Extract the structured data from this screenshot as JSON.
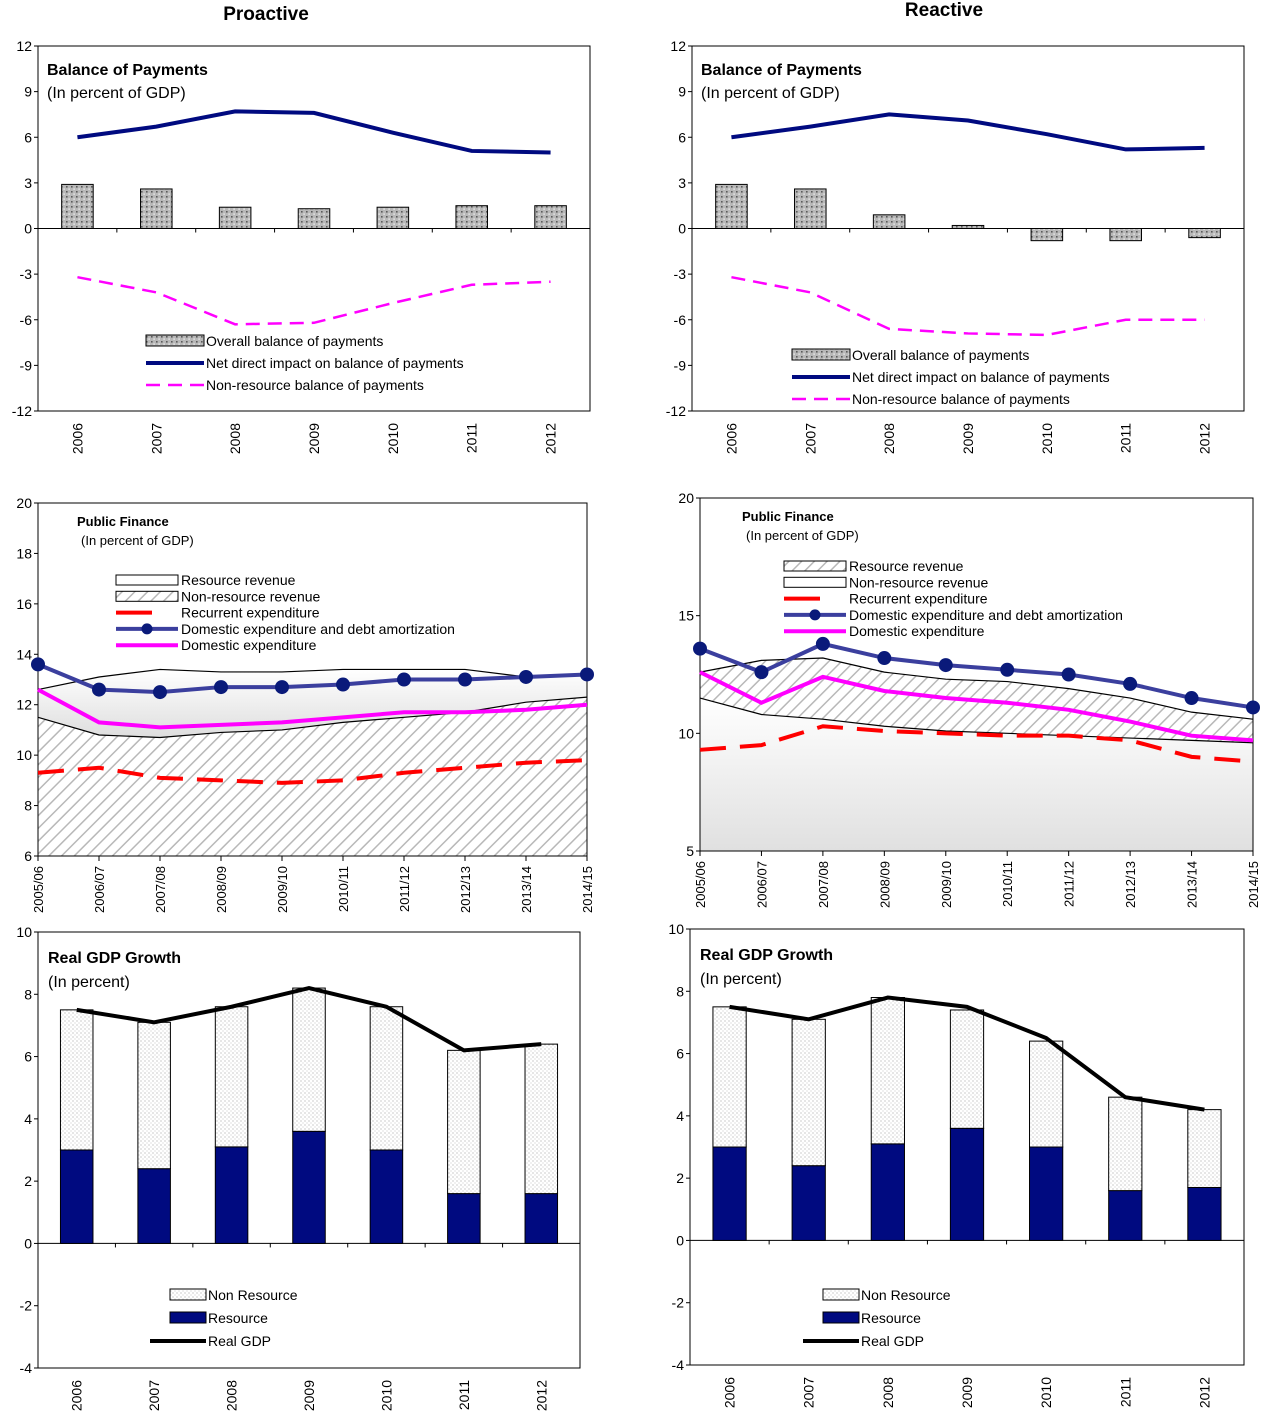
{
  "columns": {
    "left_title": "Proactive",
    "right_title": "Reactive"
  },
  "colors": {
    "navy": "#000a80",
    "magenta": "#ff00ff",
    "red": "#ff0000",
    "steel_blue": "#3b3f9e",
    "black": "#000000"
  },
  "chart_data": [
    {
      "id": "bop_proactive",
      "type": "bar",
      "title": "Balance of Payments",
      "subtitle": "(In percent of GDP)",
      "categories": [
        "2006",
        "2007",
        "2008",
        "2009",
        "2010",
        "2011",
        "2012"
      ],
      "ylim": [
        -12,
        12
      ],
      "yticks": [
        -12,
        -9,
        -6,
        -3,
        0,
        3,
        6,
        9,
        12
      ],
      "legend_placement": "bottom-center",
      "series": [
        {
          "name": "Overall balance of payments",
          "kind": "bar",
          "values": [
            2.9,
            2.6,
            1.4,
            1.3,
            1.4,
            1.5,
            1.5
          ]
        },
        {
          "name": "Net direct impact on balance of payments",
          "kind": "line",
          "values": [
            6.0,
            6.7,
            7.7,
            7.6,
            6.3,
            5.1,
            5.0
          ]
        },
        {
          "name": "Non-resource balance of payments",
          "kind": "dashed-line",
          "values": [
            -3.2,
            -4.2,
            -6.3,
            -6.2,
            -4.9,
            -3.7,
            -3.5
          ]
        }
      ]
    },
    {
      "id": "bop_reactive",
      "type": "bar",
      "title": "Balance of Payments",
      "subtitle": "(In percent of GDP)",
      "categories": [
        "2006",
        "2007",
        "2008",
        "2009",
        "2010",
        "2011",
        "2012"
      ],
      "ylim": [
        -12,
        12
      ],
      "yticks": [
        -12,
        -9,
        -6,
        -3,
        0,
        3,
        6,
        9,
        12
      ],
      "legend_placement": "bottom-center",
      "series": [
        {
          "name": "Overall balance of payments",
          "kind": "bar",
          "values": [
            2.9,
            2.6,
            0.9,
            0.2,
            -0.8,
            -0.8,
            -0.6
          ]
        },
        {
          "name": "Net direct impact on balance of payments",
          "kind": "line",
          "values": [
            6.0,
            6.7,
            7.5,
            7.1,
            6.2,
            5.2,
            5.3
          ]
        },
        {
          "name": "Non-resource balance of payments",
          "kind": "dashed-line",
          "values": [
            -3.2,
            -4.2,
            -6.6,
            -6.9,
            -7.0,
            -6.0,
            -6.0
          ]
        }
      ]
    },
    {
      "id": "pf_proactive",
      "type": "area",
      "title": "Public Finance",
      "subtitle": "(In percent of GDP)",
      "categories": [
        "2005/06",
        "2006/07",
        "2007/08",
        "2008/09",
        "2009/10",
        "2010/11",
        "2011/12",
        "2012/13",
        "2013/14",
        "2014/15"
      ],
      "ylim": [
        6,
        20
      ],
      "yticks": [
        6,
        8,
        10,
        12,
        14,
        16,
        18,
        20
      ],
      "legend_placement": "upper-center",
      "series": [
        {
          "name": "Resource revenue",
          "kind": "area-top",
          "values": [
            12.6,
            13.1,
            13.4,
            13.3,
            13.3,
            13.4,
            13.4,
            13.4,
            13.1,
            13.2
          ]
        },
        {
          "name": "Non-resource revenue",
          "kind": "area-bottom",
          "values": [
            11.5,
            10.8,
            10.7,
            10.9,
            11.0,
            11.3,
            11.5,
            11.7,
            12.1,
            12.3
          ]
        },
        {
          "name": "Recurrent expenditure",
          "kind": "dashed-line",
          "values": [
            9.3,
            9.5,
            9.1,
            9.0,
            8.9,
            9.0,
            9.3,
            9.5,
            9.7,
            9.8
          ]
        },
        {
          "name": "Domestic expenditure and debt amortization",
          "kind": "marker-line",
          "values": [
            13.6,
            12.6,
            12.5,
            12.7,
            12.7,
            12.8,
            13.0,
            13.0,
            13.1,
            13.2
          ]
        },
        {
          "name": "Domestic expenditure",
          "kind": "line",
          "values": [
            12.6,
            11.3,
            11.1,
            11.2,
            11.3,
            11.5,
            11.7,
            11.7,
            11.8,
            12.0
          ]
        }
      ]
    },
    {
      "id": "pf_reactive",
      "type": "area",
      "title": "Public Finance",
      "subtitle": "(In percent of GDP)",
      "categories": [
        "2005/06",
        "2006/07",
        "2007/08",
        "2008/09",
        "2009/10",
        "2010/11",
        "2011/12",
        "2012/13",
        "2013/14",
        "2014/15"
      ],
      "ylim": [
        5,
        20
      ],
      "yticks": [
        5,
        10,
        15,
        20
      ],
      "legend_placement": "upper-center",
      "series": [
        {
          "name": "Resource revenue",
          "kind": "area-top",
          "values": [
            12.6,
            13.1,
            13.2,
            12.6,
            12.3,
            12.2,
            11.9,
            11.5,
            10.9,
            10.6
          ]
        },
        {
          "name": "Non-resource revenue",
          "kind": "area-bottom",
          "values": [
            11.5,
            10.8,
            10.6,
            10.3,
            10.1,
            10.0,
            9.9,
            9.8,
            9.7,
            9.6
          ]
        },
        {
          "name": "Recurrent expenditure",
          "kind": "dashed-line",
          "values": [
            9.3,
            9.5,
            10.3,
            10.1,
            10.0,
            9.9,
            9.9,
            9.7,
            9.0,
            8.8
          ]
        },
        {
          "name": "Domestic expenditure and debt amortization",
          "kind": "marker-line",
          "values": [
            13.6,
            12.6,
            13.8,
            13.2,
            12.9,
            12.7,
            12.5,
            12.1,
            11.5,
            11.1
          ]
        },
        {
          "name": "Domestic expenditure",
          "kind": "line",
          "values": [
            12.6,
            11.3,
            12.4,
            11.8,
            11.5,
            11.3,
            11.0,
            10.5,
            9.9,
            9.7
          ]
        }
      ]
    },
    {
      "id": "gdp_proactive",
      "type": "bar",
      "title": "Real GDP Growth",
      "subtitle": "(In percent)",
      "categories": [
        "2006",
        "2007",
        "2008",
        "2009",
        "2010",
        "2011",
        "2012"
      ],
      "ylim": [
        -4,
        10
      ],
      "yticks": [
        -4,
        -2,
        0,
        2,
        4,
        6,
        8,
        10
      ],
      "legend_placement": "bottom-center",
      "series": [
        {
          "name": "Non Resource",
          "kind": "stack-top",
          "values": [
            4.5,
            4.7,
            4.5,
            4.6,
            4.6,
            4.6,
            4.8
          ]
        },
        {
          "name": "Resource",
          "kind": "stack-bottom",
          "values": [
            3.0,
            2.4,
            3.1,
            3.6,
            3.0,
            1.6,
            1.6
          ]
        },
        {
          "name": "Real GDP",
          "kind": "line",
          "values": [
            7.5,
            7.1,
            7.6,
            8.2,
            7.6,
            6.2,
            6.4
          ]
        }
      ]
    },
    {
      "id": "gdp_reactive",
      "type": "bar",
      "title": "Real GDP Growth",
      "subtitle": "(In percent)",
      "categories": [
        "2006",
        "2007",
        "2008",
        "2009",
        "2010",
        "2011",
        "2012"
      ],
      "ylim": [
        -4,
        10
      ],
      "yticks": [
        -4,
        -2,
        0,
        2,
        4,
        6,
        8,
        10
      ],
      "legend_placement": "bottom-center",
      "series": [
        {
          "name": "Non Resource",
          "kind": "stack-top",
          "values": [
            4.5,
            4.7,
            4.7,
            3.8,
            3.4,
            3.0,
            2.5
          ]
        },
        {
          "name": "Resource",
          "kind": "stack-bottom",
          "values": [
            3.0,
            2.4,
            3.1,
            3.6,
            3.0,
            1.6,
            1.7
          ]
        },
        {
          "name": "Real GDP",
          "kind": "line",
          "values": [
            7.5,
            7.1,
            7.8,
            7.5,
            6.5,
            4.6,
            4.2
          ]
        }
      ]
    }
  ]
}
